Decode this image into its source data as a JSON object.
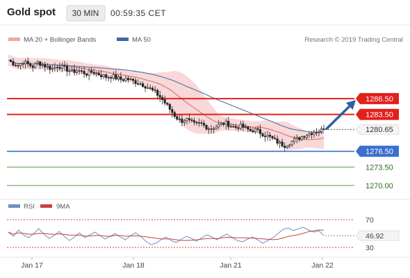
{
  "header": {
    "title": "Gold spot",
    "timeframe": "30 MIN",
    "time": "00:59:35 CET"
  },
  "legend_main": {
    "bollinger_label": "MA 20 + Bollinger Bands",
    "ma50_label": "MA 50",
    "credit": "Research © 2019 Trading Central"
  },
  "legend_rsi": {
    "rsi_label": "RSI",
    "ma_label": "9MA"
  },
  "colors": {
    "resistance": "#e0201b",
    "support": "#3a6fcf",
    "target": "#5a9a3c",
    "candle": "#222222",
    "bollinger": "#f3b8b8",
    "ma50": "#4b73a8",
    "ma20": "#d87070",
    "arrow": "#2f5fa0",
    "rsi": "#6f8fc8",
    "rsi_ma": "#c84040"
  },
  "chart_data": [
    {
      "type": "candlestick",
      "title": "Gold spot",
      "timeframe": "30 MIN",
      "x_tick_labels": [
        "Jan 17",
        "Jan 18",
        "Jan 21",
        "Jan 22"
      ],
      "ylim": [
        1268,
        1296
      ],
      "levels": [
        {
          "value": 1286.5,
          "label": "1286.50",
          "kind": "resistance"
        },
        {
          "value": 1283.5,
          "label": "1283.50",
          "kind": "resistance"
        },
        {
          "value": 1280.65,
          "label": "1280.65",
          "kind": "last"
        },
        {
          "value": 1276.5,
          "label": "1276.50",
          "kind": "support"
        },
        {
          "value": 1273.5,
          "label": "1273.50",
          "kind": "target"
        },
        {
          "value": 1270.0,
          "label": "1270.00",
          "kind": "target"
        }
      ],
      "price_path": [
        1293.8,
        1293.2,
        1292.8,
        1293.5,
        1293.0,
        1292.6,
        1293.4,
        1292.9,
        1292.5,
        1292.2,
        1292.8,
        1292.4,
        1292.0,
        1291.6,
        1291.9,
        1291.5,
        1291.2,
        1291.6,
        1291.3,
        1290.9,
        1290.6,
        1290.8,
        1290.4,
        1290.1,
        1290.3,
        1289.9,
        1289.6,
        1289.3,
        1288.8,
        1288.2,
        1287.5,
        1286.6,
        1285.4,
        1284.2,
        1283.0,
        1282.2,
        1282.6,
        1282.0,
        1281.5,
        1281.8,
        1281.2,
        1280.8,
        1281.1,
        1281.6,
        1281.9,
        1281.4,
        1281.0,
        1281.3,
        1280.9,
        1280.4,
        1280.6,
        1280.1,
        1279.6,
        1279.2,
        1278.6,
        1278.0,
        1277.6,
        1278.1,
        1278.6,
        1279.0,
        1279.5,
        1279.9,
        1280.2,
        1280.4,
        1280.6
      ],
      "series": [
        {
          "name": "MA 20 + Bollinger Bands"
        },
        {
          "name": "MA 50"
        }
      ],
      "projection": {
        "from": 1280.65,
        "to": 1286.5
      }
    },
    {
      "type": "line",
      "series": [
        {
          "name": "RSI"
        },
        {
          "name": "9MA"
        }
      ],
      "ylim": [
        20,
        80
      ],
      "reference_levels": [
        70,
        30
      ],
      "tick_labels": [
        "70",
        "30"
      ],
      "last_value": 46.92,
      "last_label": "46.92",
      "rsi_path": [
        52,
        46,
        55,
        48,
        44,
        50,
        57,
        49,
        43,
        47,
        53,
        46,
        40,
        45,
        51,
        44,
        48,
        52,
        47,
        42,
        46,
        50,
        45,
        41,
        47,
        51,
        46,
        39,
        34,
        36,
        41,
        45,
        40,
        37,
        42,
        46,
        43,
        39,
        44,
        48,
        45,
        41,
        46,
        49,
        44,
        40,
        38,
        42,
        45,
        41,
        36,
        40,
        44,
        50,
        56,
        58,
        54,
        57,
        59,
        55,
        52,
        54,
        47
      ]
    }
  ]
}
